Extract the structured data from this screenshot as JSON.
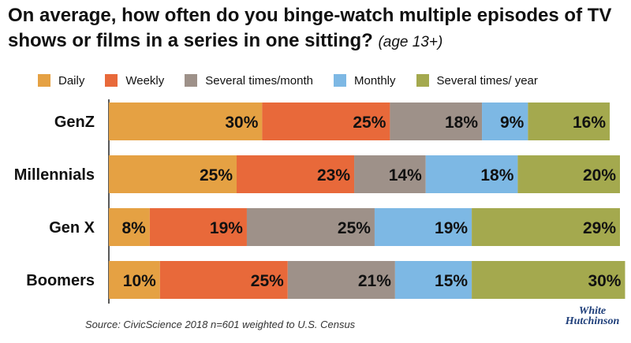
{
  "title": {
    "main": "On average, how often do you binge-watch multiple episodes of TV shows or films in a series in one sitting?",
    "subtitle": "(age 13+)"
  },
  "source": "Source: CivicScience 2018 n=601 weighted to U.S. Census",
  "logo": {
    "line1": "White",
    "line2": "Hutchinson"
  },
  "chart_data": {
    "type": "bar",
    "orientation": "horizontal",
    "stacked": true,
    "categories": [
      "GenZ",
      "Millennials",
      "Gen X",
      "Boomers"
    ],
    "series": [
      {
        "name": "Daily",
        "color": "#E5A143",
        "values": [
          30,
          25,
          8,
          10
        ]
      },
      {
        "name": "Weekly",
        "color": "#E8693A",
        "values": [
          25,
          23,
          19,
          25
        ]
      },
      {
        "name": "Several times/month",
        "color": "#9E9189",
        "values": [
          18,
          14,
          25,
          21
        ]
      },
      {
        "name": "Monthly",
        "color": "#7DB8E4",
        "values": [
          9,
          18,
          19,
          15
        ]
      },
      {
        "name": "Several times/ year",
        "color": "#A4A94E",
        "values": [
          16,
          20,
          29,
          30
        ]
      }
    ],
    "value_suffix": "%",
    "xlim": [
      0,
      100
    ],
    "legend_position": "top",
    "grid": false
  }
}
